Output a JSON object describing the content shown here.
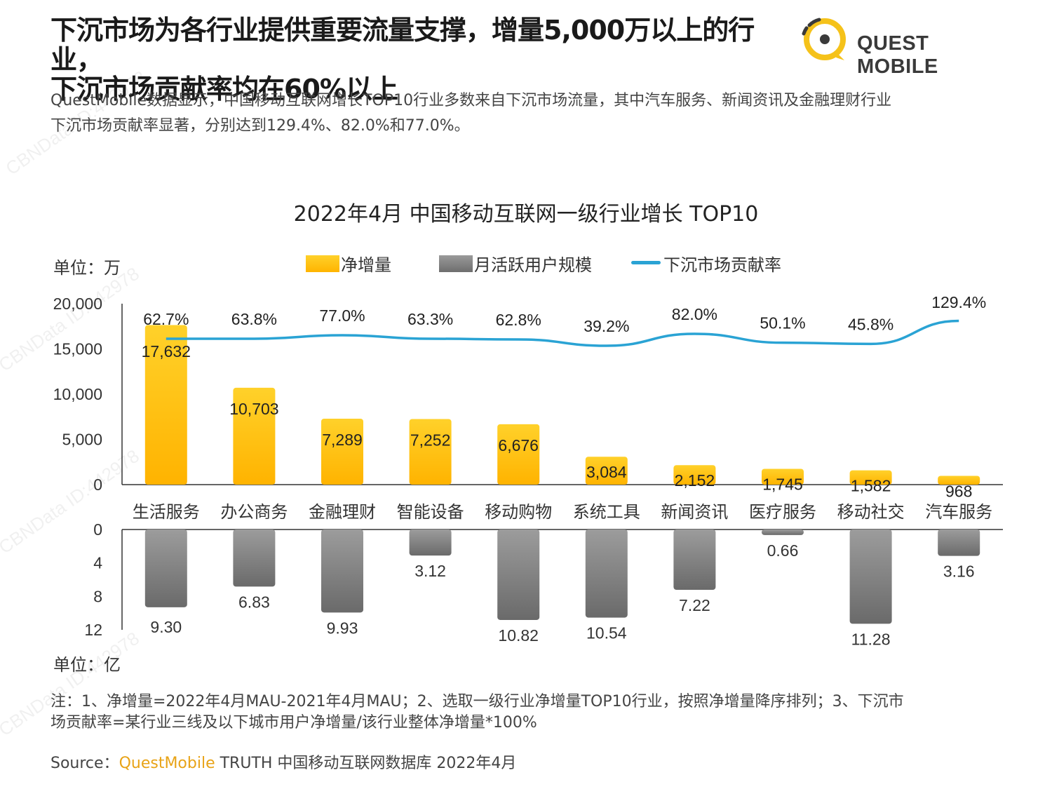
{
  "header": {
    "title_line1": "下沉市场为各行业提供重要流量支撑，增量5,000万以上的行业，",
    "title_line2": "下沉市场贡献率均在60%以上",
    "logo_text": "QUEST MOBILE",
    "subtitle_line1": "QuestMobile数据显示，中国移动互联网增长TOP10行业多数来自下沉市场流量，其中汽车服务、新闻资讯及金融理财行业",
    "subtitle_line2": "下沉市场贡献率显著，分别达到129.4%、82.0%和77.0%。"
  },
  "colors": {
    "bar_top": "#ffc20e",
    "bar_gray": "#8a8a8a",
    "line": "#2aa3d4",
    "brand": "#e8a317"
  },
  "chart_data": {
    "type": "bar",
    "title": "2022年4月 中国移动互联网一级行业增长 TOP10",
    "unit_top": "单位：万",
    "unit_bottom": "单位：亿",
    "categories": [
      "生活服务",
      "办公商务",
      "金融理财",
      "智能设备",
      "移动购物",
      "系统工具",
      "新闻资讯",
      "医疗服务",
      "移动社交",
      "汽车服务"
    ],
    "series": [
      {
        "name": "净增量",
        "values": [
          17632,
          10703,
          7289,
          7252,
          6676,
          3084,
          2152,
          1745,
          1582,
          968
        ],
        "labels": [
          "17,632",
          "10,703",
          "7,289",
          "7,252",
          "6,676",
          "3,084",
          "2,152",
          "1,745",
          "1,582",
          "968"
        ]
      },
      {
        "name": "月活跃用户规模",
        "values": [
          9.3,
          6.83,
          9.93,
          3.12,
          10.82,
          10.54,
          7.22,
          0.66,
          11.28,
          3.16
        ],
        "labels": [
          "9.30",
          "6.83",
          "9.93",
          "3.12",
          "10.82",
          "10.54",
          "7.22",
          "0.66",
          "11.28",
          "3.16"
        ]
      },
      {
        "name": "下沉市场贡献率",
        "values": [
          62.7,
          63.8,
          77.0,
          63.3,
          62.8,
          39.2,
          82.0,
          50.1,
          45.8,
          129.4
        ],
        "labels": [
          "62.7%",
          "63.8%",
          "77.0%",
          "63.3%",
          "62.8%",
          "39.2%",
          "82.0%",
          "50.1%",
          "45.8%",
          "129.4%"
        ]
      }
    ],
    "top_axis": {
      "ylim": [
        0,
        20000
      ],
      "ticks": [
        "0",
        "5,000",
        "10,000",
        "15,000",
        "20,000"
      ]
    },
    "bottom_axis": {
      "ylim": [
        0,
        12
      ],
      "ticks": [
        "0",
        "4",
        "8",
        "12"
      ],
      "inverted": true
    },
    "legend_position": "top"
  },
  "notes": {
    "line1": "注：1、净增量=2022年4月MAU-2021年4月MAU；2、选取一级行业净增量TOP10行业，按照净增量降序排列；3、下沉市",
    "line2": "场贡献率=某行业三线及以下城市用户净增量/该行业整体净增量*100%"
  },
  "source": {
    "prefix": "Source：",
    "brand": "QuestMobile",
    "rest": " TRUTH 中国移动互联网数据库 2022年4月"
  }
}
